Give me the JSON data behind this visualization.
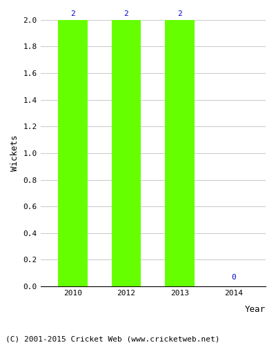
{
  "categories": [
    "2010",
    "2012",
    "2013",
    "2014"
  ],
  "values": [
    2,
    2,
    2,
    0
  ],
  "bar_color": "#66ff00",
  "bar_edgecolor": "#66ff00",
  "label_color": "#0000cc",
  "xlabel": "Year",
  "ylabel": "Wickets",
  "ylim": [
    0.0,
    2.0
  ],
  "yticks": [
    0.0,
    0.2,
    0.4,
    0.6,
    0.8,
    1.0,
    1.2,
    1.4,
    1.6,
    1.8,
    2.0
  ],
  "grid_color": "#cccccc",
  "background_color": "#ffffff",
  "footer_text": "(C) 2001-2015 Cricket Web (www.cricketweb.net)",
  "xlabel_fontsize": 9,
  "ylabel_fontsize": 9,
  "tick_fontsize": 8,
  "label_fontsize": 8,
  "footer_fontsize": 8,
  "bar_width": 0.55
}
